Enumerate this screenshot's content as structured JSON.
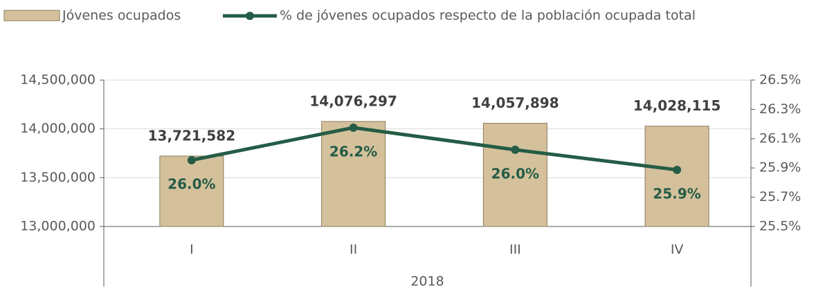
{
  "chart_data": {
    "type": "bar_line",
    "categories": [
      "I",
      "II",
      "III",
      "IV"
    ],
    "group_label": "2018",
    "series": [
      {
        "name": "Jóvenes ocupados",
        "color": "#d4c19c",
        "type": "bar",
        "values": [
          13721582,
          14076297,
          14057898,
          14028115
        ],
        "value_labels": [
          "13,721,582",
          "14,076,297",
          "14,057,898",
          "14,028,115"
        ]
      },
      {
        "name": "% de jóvenes ocupados respecto de la población ocupada total",
        "color": "#255c45",
        "type": "line",
        "axis": "y2",
        "values": [
          25.953,
          26.175,
          26.024,
          25.887
        ],
        "value_labels": [
          "26.0%",
          "26.2%",
          "26.0%",
          "25.9%"
        ]
      }
    ],
    "ylim": [
      13000000,
      14500000
    ],
    "yticks": [
      {
        "value": 13000000,
        "label": "13,000,000"
      },
      {
        "value": 13500000,
        "label": "13,500,000"
      },
      {
        "value": 14000000,
        "label": "14,000,000"
      },
      {
        "value": 14500000,
        "label": "14,500,000"
      }
    ],
    "y2lim": [
      25.5,
      26.5
    ],
    "y2ticks": [
      {
        "value": 25.5,
        "label": "25.5%"
      },
      {
        "value": 25.7,
        "label": "25.7%"
      },
      {
        "value": 25.9,
        "label": "25.9%"
      },
      {
        "value": 26.1,
        "label": "26.1%"
      },
      {
        "value": 26.3,
        "label": "26.3%"
      },
      {
        "value": 26.5,
        "label": "26.5%"
      }
    ],
    "grid": true
  }
}
